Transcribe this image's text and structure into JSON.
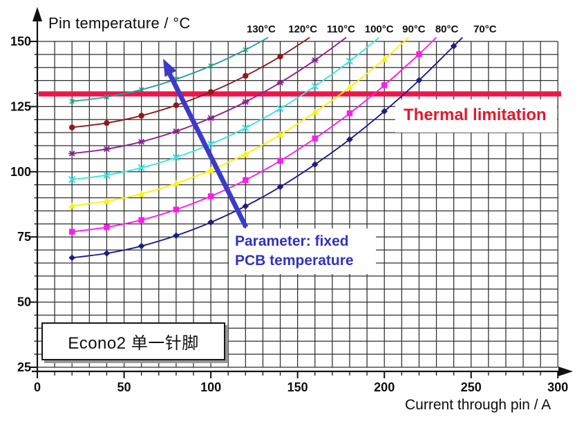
{
  "chart_data": {
    "type": "line",
    "title": "Pin temperature / °C",
    "xlabel": "Current through pin / A",
    "xlim": [
      0,
      300
    ],
    "ylim": [
      25,
      150
    ],
    "x_ticks": [
      0,
      50,
      100,
      150,
      200,
      250,
      300
    ],
    "y_ticks": [
      25,
      50,
      75,
      100,
      125,
      150
    ],
    "x_minor_step": 10,
    "y_minor_step": 5,
    "grid": true,
    "legend_position": "top-curve-labels",
    "series": [
      {
        "name": "130°C",
        "pcb_temp": 130,
        "color": "#26A094",
        "marker": "x-small",
        "label_current": 129,
        "points": [
          [
            20,
            127.0
          ],
          [
            40,
            128.7
          ],
          [
            60,
            131.5
          ],
          [
            80,
            135.5
          ],
          [
            100,
            140.6
          ],
          [
            120,
            146.8
          ]
        ],
        "end": [
          133,
          151.5
        ]
      },
      {
        "name": "120°C",
        "pcb_temp": 120,
        "color": "#8F1A1A",
        "marker": "circle",
        "label_current": 153,
        "points": [
          [
            20,
            117.0
          ],
          [
            40,
            118.7
          ],
          [
            60,
            121.5
          ],
          [
            80,
            125.5
          ],
          [
            100,
            130.6
          ],
          [
            120,
            136.8
          ],
          [
            140,
            144.2
          ]
        ],
        "end": [
          157,
          151.5
        ]
      },
      {
        "name": "110°C",
        "pcb_temp": 110,
        "color": "#8F1F93",
        "marker": "asterisk",
        "label_current": 175,
        "points": [
          [
            20,
            107.0
          ],
          [
            40,
            108.7
          ],
          [
            60,
            111.5
          ],
          [
            80,
            115.5
          ],
          [
            100,
            120.6
          ],
          [
            120,
            126.8
          ],
          [
            140,
            134.2
          ],
          [
            160,
            142.8
          ]
        ],
        "end": [
          178,
          151.5
        ]
      },
      {
        "name": "100°C",
        "pcb_temp": 100,
        "color": "#3CE3E3",
        "marker": "x",
        "label_current": 197,
        "points": [
          [
            20,
            97.0
          ],
          [
            40,
            98.7
          ],
          [
            60,
            101.5
          ],
          [
            80,
            105.5
          ],
          [
            100,
            110.6
          ],
          [
            120,
            116.8
          ],
          [
            140,
            124.2
          ],
          [
            160,
            132.8
          ],
          [
            180,
            142.4
          ]
        ],
        "end": [
          197,
          151.5
        ]
      },
      {
        "name": "90°C",
        "pcb_temp": 90,
        "color": "#FFF104",
        "marker": "triangle",
        "label_current": 217,
        "points": [
          [
            20,
            87.0
          ],
          [
            40,
            88.7
          ],
          [
            60,
            91.5
          ],
          [
            80,
            95.5
          ],
          [
            100,
            100.6
          ],
          [
            120,
            106.8
          ],
          [
            140,
            114.2
          ],
          [
            160,
            122.8
          ],
          [
            180,
            132.4
          ],
          [
            200,
            143.2
          ]
        ],
        "end": [
          214,
          151.5
        ]
      },
      {
        "name": "80°C",
        "pcb_temp": 80,
        "color": "#FF1AEF",
        "marker": "square",
        "label_current": 236,
        "points": [
          [
            20,
            77.0
          ],
          [
            40,
            78.7
          ],
          [
            60,
            81.5
          ],
          [
            80,
            85.5
          ],
          [
            100,
            90.6
          ],
          [
            120,
            96.8
          ],
          [
            140,
            104.2
          ],
          [
            160,
            112.8
          ],
          [
            180,
            122.4
          ],
          [
            200,
            133.2
          ],
          [
            220,
            145.1
          ]
        ],
        "end": [
          230,
          151.5
        ]
      },
      {
        "name": "70°C",
        "pcb_temp": 70,
        "color": "#1D1D86",
        "marker": "diamond",
        "label_current": 258,
        "points": [
          [
            20,
            67.0
          ],
          [
            40,
            68.7
          ],
          [
            60,
            71.5
          ],
          [
            80,
            75.5
          ],
          [
            100,
            80.6
          ],
          [
            120,
            86.8
          ],
          [
            140,
            94.2
          ],
          [
            160,
            102.8
          ],
          [
            180,
            112.4
          ],
          [
            200,
            123.2
          ],
          [
            220,
            135.1
          ],
          [
            240,
            148.2
          ]
        ],
        "end": [
          245,
          151.5
        ]
      }
    ],
    "thermal_limit": {
      "value": 130,
      "label": "Thermal limitation",
      "line_color": "#F2134B",
      "text_color": "#E2192E"
    },
    "annotation": {
      "line1": "Parameter: fixed",
      "line2": "PCB temperature",
      "text_color": "#3232BE",
      "arrow_color": "#3B3BC8"
    },
    "badge": {
      "label": "Econo2 单一针脚"
    }
  }
}
